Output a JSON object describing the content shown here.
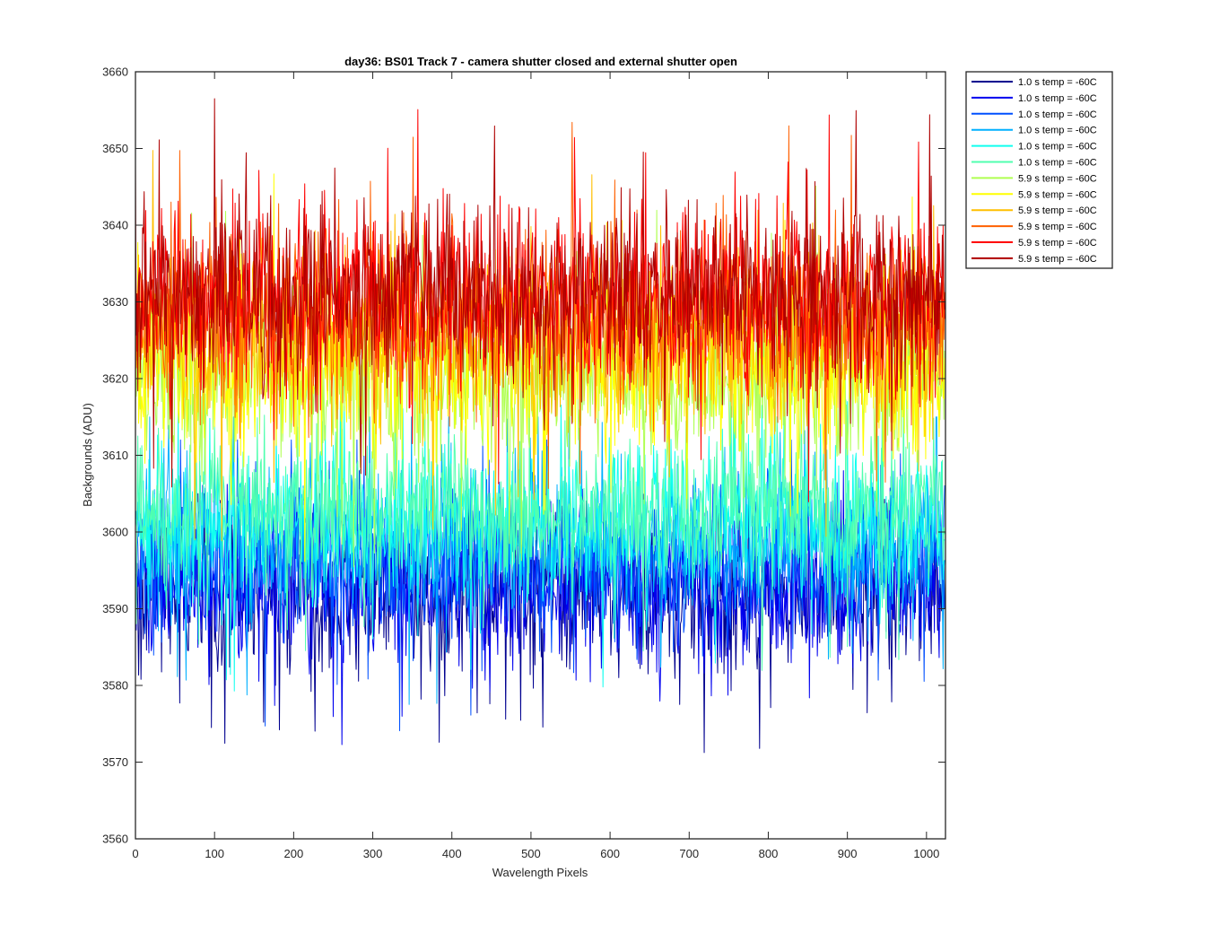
{
  "figure": {
    "title": "day36: BS01  Track 7 - camera shutter closed and external shutter open"
  },
  "chart_data": {
    "type": "line",
    "title": "day36: BS01  Track 7 - camera shutter closed and external shutter open",
    "xlabel": "Wavelength Pixels",
    "ylabel": "Backgrounds (ADU)",
    "xlim": [
      0,
      1024
    ],
    "ylim": [
      3560,
      3660
    ],
    "xticks": [
      0,
      100,
      200,
      300,
      400,
      500,
      600,
      700,
      800,
      900,
      1000
    ],
    "yticks": [
      3560,
      3570,
      3580,
      3590,
      3600,
      3610,
      3620,
      3630,
      3640,
      3650,
      3660
    ],
    "grid": false,
    "legend_position": "outside-top-right",
    "n_points": 1024,
    "series": [
      {
        "name": "1.0 s temp = -60C",
        "color": "#00008f",
        "mean": 3592,
        "spread": 5.0,
        "min": 3564,
        "max": 3605
      },
      {
        "name": "1.0 s temp = -60C",
        "color": "#0000ef",
        "mean": 3593,
        "spread": 5.0,
        "min": 3571,
        "max": 3608
      },
      {
        "name": "1.0 s temp = -60C",
        "color": "#0050ff",
        "mean": 3596,
        "spread": 5.0,
        "min": 3573,
        "max": 3612
      },
      {
        "name": "1.0 s temp = -60C",
        "color": "#00b0ff",
        "mean": 3599,
        "spread": 5.0,
        "min": 3576,
        "max": 3615
      },
      {
        "name": "1.0 s temp = -60C",
        "color": "#10ffef",
        "mean": 3601,
        "spread": 5.0,
        "min": 3578,
        "max": 3617
      },
      {
        "name": "1.0 s temp = -60C",
        "color": "#50ffaf",
        "mean": 3603,
        "spread": 5.0,
        "min": 3580,
        "max": 3618
      },
      {
        "name": "5.9 s temp = -60C",
        "color": "#afff50",
        "mean": 3620,
        "spread": 6.0,
        "min": 3586,
        "max": 3656
      },
      {
        "name": "5.9 s temp = -60C",
        "color": "#ffff00",
        "mean": 3622,
        "spread": 6.0,
        "min": 3590,
        "max": 3650
      },
      {
        "name": "5.9 s temp = -60C",
        "color": "#ffbf00",
        "mean": 3625,
        "spread": 6.0,
        "min": 3592,
        "max": 3651
      },
      {
        "name": "5.9 s temp = -60C",
        "color": "#ff6000",
        "mean": 3628,
        "spread": 6.0,
        "min": 3594,
        "max": 3658
      },
      {
        "name": "5.9 s temp = -60C",
        "color": "#ff0000",
        "mean": 3630,
        "spread": 6.0,
        "min": 3596,
        "max": 3659
      },
      {
        "name": "5.9 s temp = -60C",
        "color": "#af0000",
        "mean": 3631,
        "spread": 6.0,
        "min": 3598,
        "max": 3659
      }
    ]
  }
}
